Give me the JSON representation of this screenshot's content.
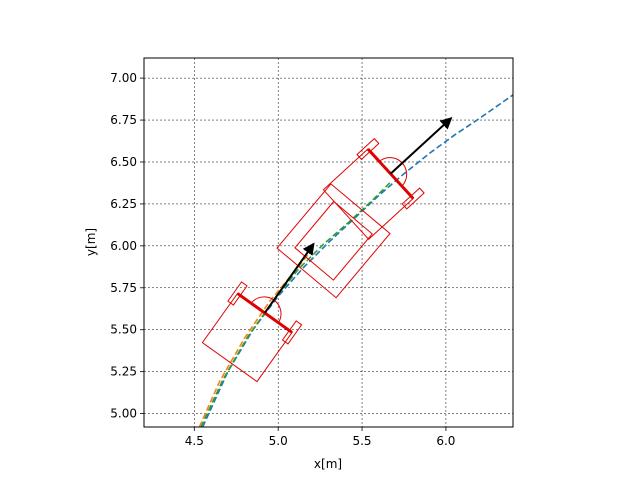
{
  "chart_data": {
    "type": "line",
    "xlabel": "x[m]",
    "ylabel": "y[m]",
    "xlim": [
      4.2,
      6.4
    ],
    "ylim": [
      4.92,
      7.12
    ],
    "x_ticks": [
      "4.5",
      "5.0",
      "5.5",
      "6.0"
    ],
    "y_ticks": [
      "5.00",
      "5.25",
      "5.50",
      "5.75",
      "6.00",
      "6.25",
      "6.50",
      "6.75",
      "7.00"
    ],
    "grid": true,
    "series": [
      {
        "color": "#1f77b4",
        "style": "dashed",
        "x": [
          4.55,
          4.7,
          4.85,
          5.0,
          5.15,
          5.3,
          5.45,
          5.6,
          5.75,
          5.9,
          6.05,
          6.2,
          6.4
        ],
        "y": [
          4.92,
          5.25,
          5.5,
          5.7,
          5.87,
          6.02,
          6.16,
          6.3,
          6.43,
          6.55,
          6.66,
          6.76,
          6.9
        ]
      },
      {
        "color": "#ff7f0e",
        "style": "dashed",
        "x": [
          4.53,
          4.65,
          4.8,
          4.95,
          5.1,
          5.22
        ],
        "y": [
          4.92,
          5.19,
          5.45,
          5.67,
          5.85,
          6.0
        ]
      },
      {
        "color": "#2ca02c",
        "style": "dashed",
        "x": [
          4.54,
          4.67,
          4.82,
          4.97,
          5.12,
          5.27,
          5.42,
          5.57,
          5.67
        ],
        "y": [
          4.92,
          5.2,
          5.46,
          5.67,
          5.86,
          6.01,
          6.14,
          6.28,
          6.38
        ]
      }
    ],
    "arrows": [
      {
        "x": 4.92,
        "y": 5.6,
        "dx": 0.29,
        "dy": 0.41
      },
      {
        "x": 5.67,
        "y": 6.43,
        "dx": 0.36,
        "dy": 0.33
      }
    ],
    "vehicles": [
      {
        "x": 4.92,
        "y": 5.6,
        "heading_deg": 54.5,
        "color": "#e00000"
      },
      {
        "x": 5.67,
        "y": 6.43,
        "heading_deg": 42.5,
        "color": "#e00000"
      }
    ],
    "trailer": {
      "x": 5.33,
      "y": 6.03,
      "heading_deg": 50,
      "color": "#e00000"
    }
  }
}
